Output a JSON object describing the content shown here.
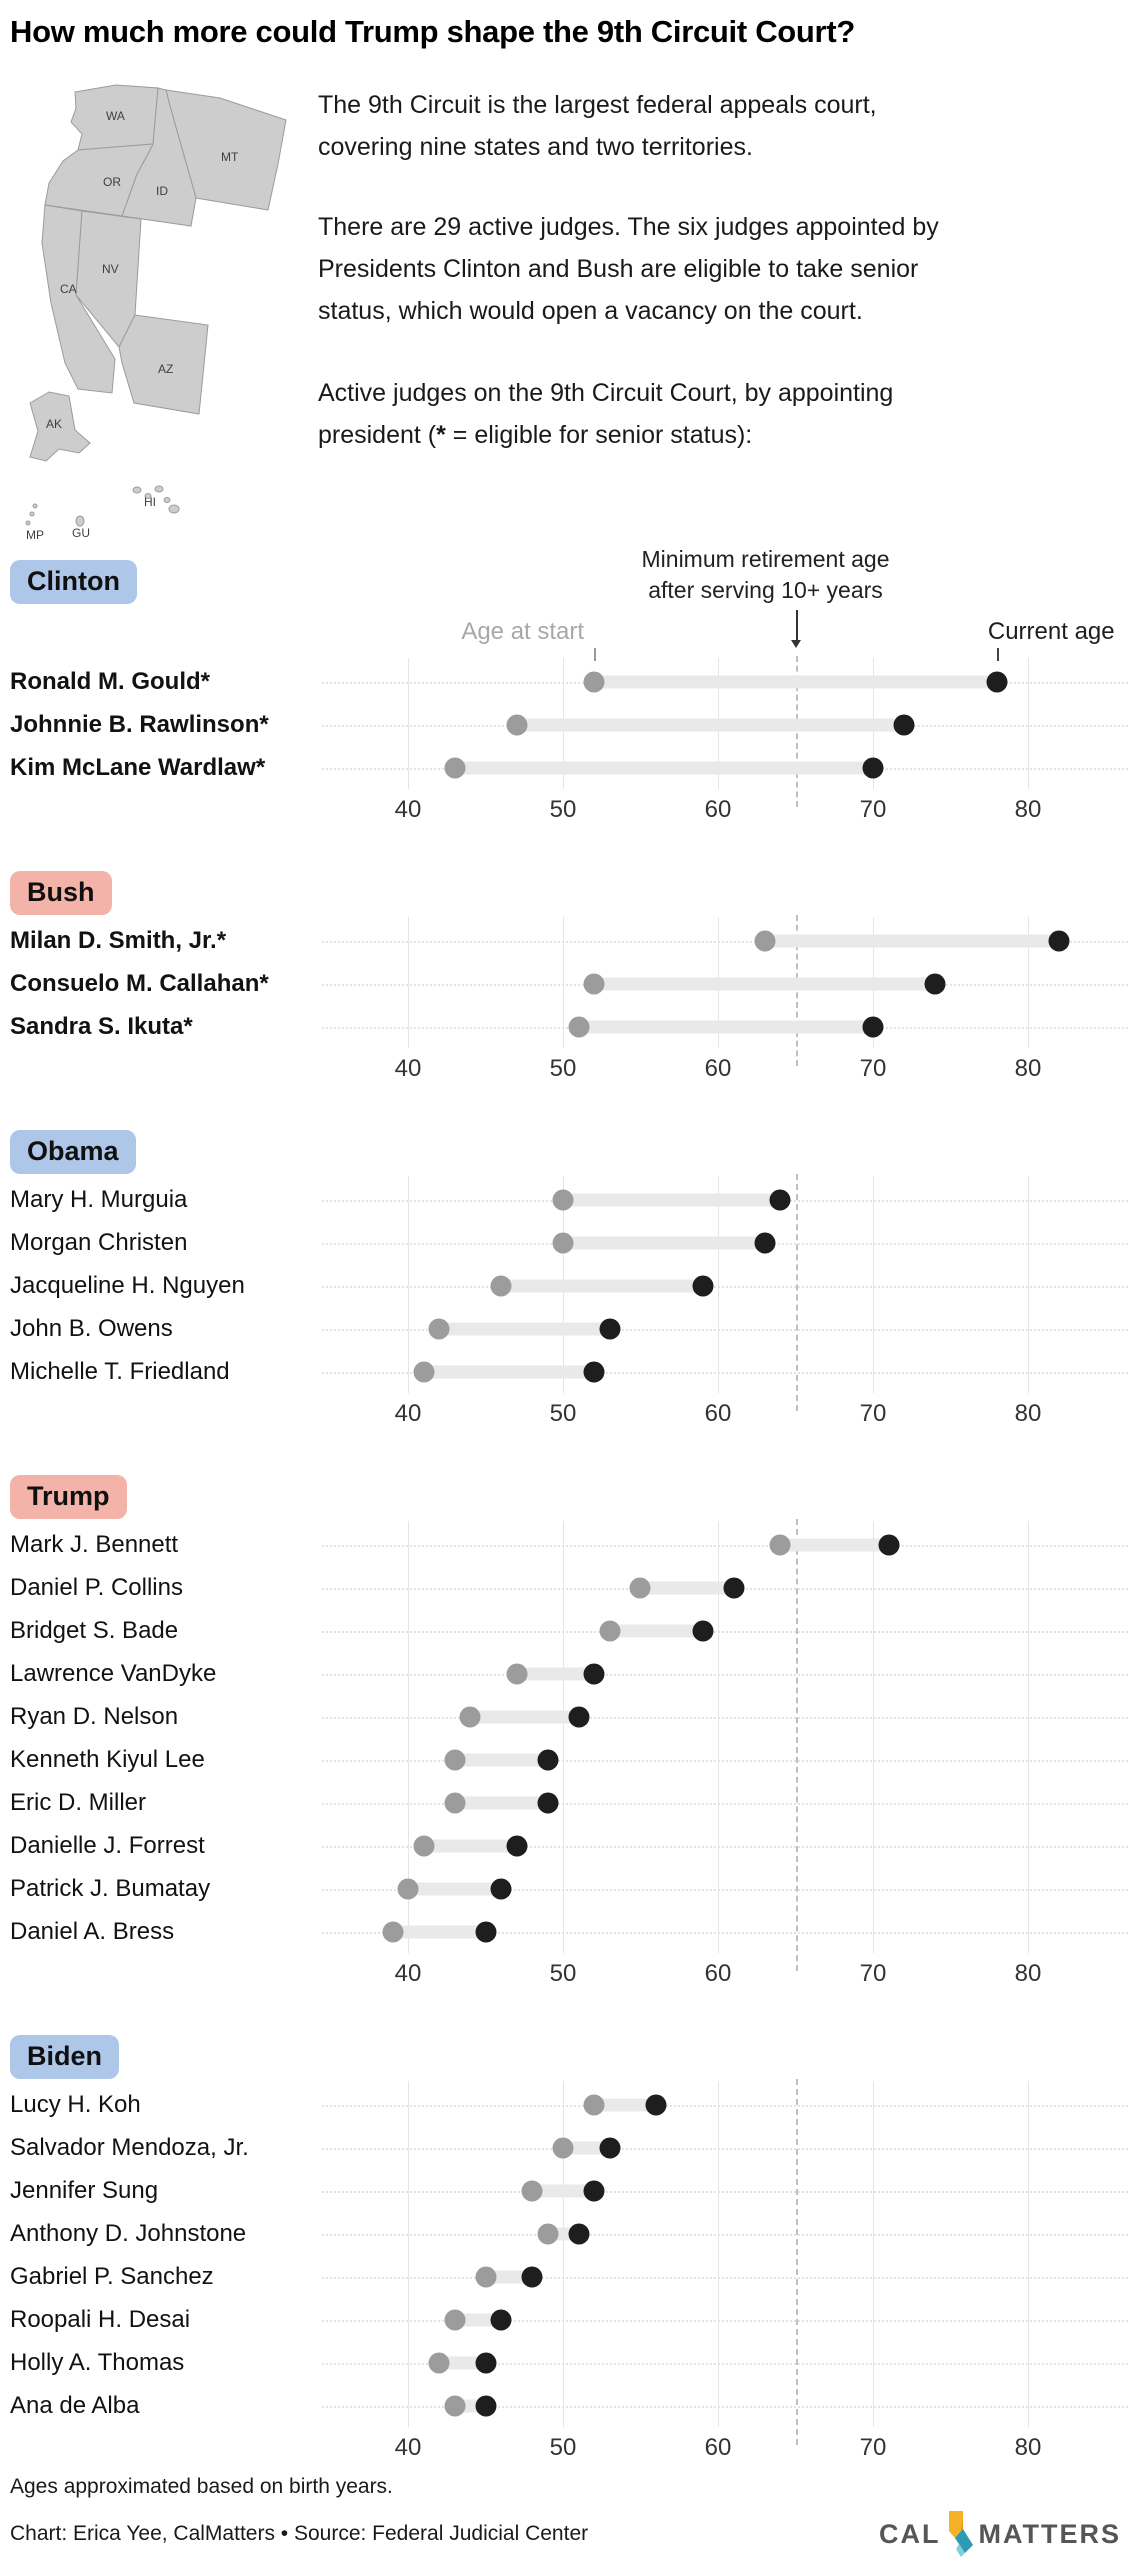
{
  "title": "How much more could Trump shape the 9th Circuit Court?",
  "intro": {
    "p1": "The 9th Circuit is the largest federal appeals court,\ncovering nine states and two territories.",
    "p2": "There are 29 active judges. The six judges appointed by\nPresidents Clinton and Bush are eligible to take senior\nstatus, which would open a vacancy on the court.",
    "p3_before_star": "Active judges on the 9th Circuit Court, by appointing\npresident (",
    "p3_star": "*",
    "p3_after_star": " = eligible for senior status):"
  },
  "map": {
    "labels": [
      "WA",
      "OR",
      "MT",
      "ID",
      "NV",
      "CA",
      "AZ",
      "AK",
      "MP",
      "GU",
      "HI"
    ]
  },
  "chart_labels": {
    "annotation_line1": "Minimum retirement age",
    "annotation_line2": "after serving 10+ years",
    "start_label": "Age at start",
    "current_label": "Current age"
  },
  "colors": {
    "badge_blue": "#aec6e8",
    "badge_red": "#f3b3a8",
    "dot_start": "#9c9c9c",
    "dot_end": "#1e1e1e",
    "bar": "#e9e9e9",
    "gridline": "#e5e5e5",
    "dashed_reference": "#bfbfbf",
    "start_label_gray": "#a8a8a8"
  },
  "chart_data": {
    "type": "dumbbell",
    "unit": "age in years",
    "x_axis": {
      "ticks": [
        40,
        50,
        60,
        70,
        80
      ],
      "min": 34,
      "max": 86,
      "grid": true
    },
    "reference_line": {
      "value": 65,
      "style": "dashed",
      "label": "Minimum retirement age after serving 10+ years"
    },
    "series_labels": {
      "start": "Age at start",
      "end": "Current age"
    },
    "groups": [
      {
        "president": "Clinton",
        "badge_color": "#aec6e8",
        "judges": [
          {
            "name": "Ronald M. Gould*",
            "eligible": true,
            "age_at_start": 52,
            "current_age": 78
          },
          {
            "name": "Johnnie B. Rawlinson*",
            "eligible": true,
            "age_at_start": 47,
            "current_age": 72
          },
          {
            "name": "Kim McLane Wardlaw*",
            "eligible": true,
            "age_at_start": 43,
            "current_age": 70
          }
        ]
      },
      {
        "president": "Bush",
        "badge_color": "#f3b3a8",
        "judges": [
          {
            "name": "Milan D. Smith, Jr.*",
            "eligible": true,
            "age_at_start": 63,
            "current_age": 82
          },
          {
            "name": "Consuelo M. Callahan*",
            "eligible": true,
            "age_at_start": 52,
            "current_age": 74
          },
          {
            "name": "Sandra S. Ikuta*",
            "eligible": true,
            "age_at_start": 51,
            "current_age": 70
          }
        ]
      },
      {
        "president": "Obama",
        "badge_color": "#aec6e8",
        "judges": [
          {
            "name": "Mary H. Murguia",
            "eligible": false,
            "age_at_start": 50,
            "current_age": 64
          },
          {
            "name": "Morgan Christen",
            "eligible": false,
            "age_at_start": 50,
            "current_age": 63
          },
          {
            "name": "Jacqueline H. Nguyen",
            "eligible": false,
            "age_at_start": 46,
            "current_age": 59
          },
          {
            "name": "John B. Owens",
            "eligible": false,
            "age_at_start": 42,
            "current_age": 53
          },
          {
            "name": "Michelle T. Friedland",
            "eligible": false,
            "age_at_start": 41,
            "current_age": 52
          }
        ]
      },
      {
        "president": "Trump",
        "badge_color": "#f3b3a8",
        "judges": [
          {
            "name": "Mark J. Bennett",
            "eligible": false,
            "age_at_start": 64,
            "current_age": 71
          },
          {
            "name": "Daniel P. Collins",
            "eligible": false,
            "age_at_start": 55,
            "current_age": 61
          },
          {
            "name": "Bridget S. Bade",
            "eligible": false,
            "age_at_start": 53,
            "current_age": 59
          },
          {
            "name": "Lawrence VanDyke",
            "eligible": false,
            "age_at_start": 47,
            "current_age": 52
          },
          {
            "name": "Ryan D. Nelson",
            "eligible": false,
            "age_at_start": 44,
            "current_age": 51
          },
          {
            "name": "Kenneth Kiyul Lee",
            "eligible": false,
            "age_at_start": 43,
            "current_age": 49
          },
          {
            "name": "Eric D. Miller",
            "eligible": false,
            "age_at_start": 43,
            "current_age": 49
          },
          {
            "name": "Danielle J. Forrest",
            "eligible": false,
            "age_at_start": 41,
            "current_age": 47
          },
          {
            "name": "Patrick J. Bumatay",
            "eligible": false,
            "age_at_start": 40,
            "current_age": 46
          },
          {
            "name": "Daniel A. Bress",
            "eligible": false,
            "age_at_start": 39,
            "current_age": 45
          }
        ]
      },
      {
        "president": "Biden",
        "badge_color": "#aec6e8",
        "judges": [
          {
            "name": "Lucy H. Koh",
            "eligible": false,
            "age_at_start": 52,
            "current_age": 56
          },
          {
            "name": "Salvador Mendoza, Jr.",
            "eligible": false,
            "age_at_start": 50,
            "current_age": 53
          },
          {
            "name": "Jennifer Sung",
            "eligible": false,
            "age_at_start": 48,
            "current_age": 52
          },
          {
            "name": "Anthony D. Johnstone",
            "eligible": false,
            "age_at_start": 49,
            "current_age": 51
          },
          {
            "name": "Gabriel P. Sanchez",
            "eligible": false,
            "age_at_start": 45,
            "current_age": 48
          },
          {
            "name": "Roopali H. Desai",
            "eligible": false,
            "age_at_start": 43,
            "current_age": 46
          },
          {
            "name": "Holly A. Thomas",
            "eligible": false,
            "age_at_start": 42,
            "current_age": 45
          },
          {
            "name": "Ana de Alba",
            "eligible": false,
            "age_at_start": 43,
            "current_age": 45
          }
        ]
      }
    ]
  },
  "footer": {
    "note": "Ages approximated based on birth years.",
    "credit": "Chart: Erica Yee, CalMatters • Source: Federal Judicial Center",
    "logo_cal": "CAL",
    "logo_matters": "MATTERS"
  }
}
